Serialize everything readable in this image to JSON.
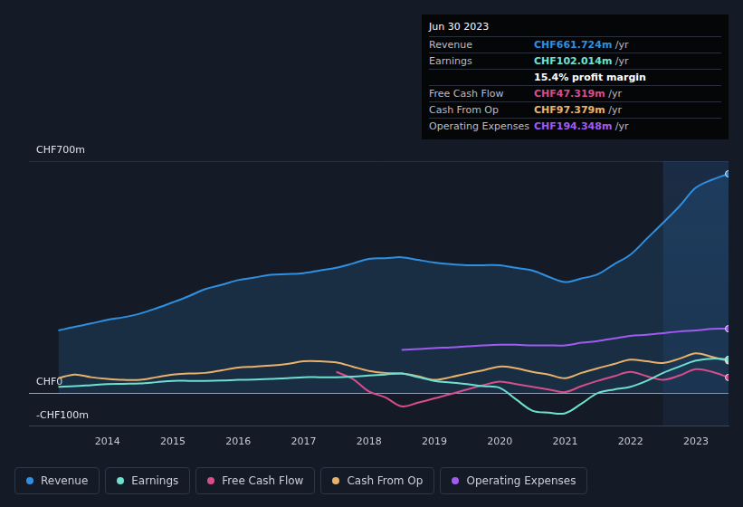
{
  "chart_data": {
    "type": "line",
    "x": [
      2013.25,
      2013.5,
      2013.75,
      2014,
      2014.25,
      2014.5,
      2014.75,
      2015,
      2015.25,
      2015.5,
      2015.75,
      2016,
      2016.25,
      2016.5,
      2016.75,
      2017,
      2017.25,
      2017.5,
      2017.75,
      2018,
      2018.25,
      2018.5,
      2018.75,
      2019,
      2019.25,
      2019.5,
      2019.75,
      2020,
      2020.25,
      2020.5,
      2020.75,
      2021,
      2021.25,
      2021.5,
      2021.75,
      2022,
      2022.25,
      2022.5,
      2022.75,
      2023,
      2023.25,
      2023.5
    ],
    "xlim": [
      2012.8,
      2023.5
    ],
    "xticks": [
      2014,
      2015,
      2016,
      2017,
      2018,
      2019,
      2020,
      2021,
      2022,
      2023
    ],
    "ylim": [
      -100,
      700
    ],
    "yticks": [
      {
        "value": -100,
        "label": "-CHF100m"
      },
      {
        "value": 0,
        "label": "CHF0"
      },
      {
        "value": 700,
        "label": "CHF700m"
      }
    ],
    "grid": true,
    "legend": "bottom left",
    "highlight_xlim": [
      2022.5,
      2023.5
    ],
    "series": [
      {
        "name": "Revenue",
        "color": "#2f8fe0",
        "type": "area",
        "values": [
          189,
          200,
          210,
          221,
          229,
          240,
          256,
          274,
          293,
          314,
          327,
          341,
          349,
          357,
          359,
          362,
          370,
          378,
          391,
          405,
          407,
          410,
          402,
          394,
          389,
          386,
          386,
          386,
          378,
          370,
          351,
          335,
          346,
          359,
          389,
          418,
          466,
          514,
          564,
          620,
          644,
          661.724
        ]
      },
      {
        "name": "Earnings",
        "color": "#6ee0d0",
        "type": "line",
        "values": [
          19,
          21,
          24,
          27,
          28,
          29,
          33,
          37,
          37,
          37,
          38,
          40,
          41,
          43,
          45,
          48,
          48,
          48,
          50,
          53,
          56,
          59,
          48,
          37,
          32,
          27,
          21,
          16,
          -19,
          -53,
          -59,
          -61,
          -32,
          0,
          11,
          19,
          37,
          61,
          80,
          98,
          104,
          102.014
        ]
      },
      {
        "name": "Free Cash Flow",
        "color": "#d64e8b",
        "type": "line",
        "values": [
          null,
          null,
          null,
          null,
          null,
          null,
          null,
          null,
          null,
          null,
          null,
          null,
          null,
          null,
          null,
          null,
          null,
          64,
          43,
          5,
          -13,
          -40,
          -29,
          -16,
          -3,
          11,
          24,
          35,
          27,
          19,
          11,
          3,
          21,
          37,
          51,
          64,
          51,
          40,
          53,
          72,
          64,
          47.319
        ]
      },
      {
        "name": "Cash From Op",
        "color": "#e8b26a",
        "type": "line",
        "values": [
          45,
          56,
          48,
          43,
          40,
          40,
          48,
          56,
          59,
          61,
          69,
          77,
          80,
          83,
          88,
          96,
          96,
          93,
          80,
          67,
          61,
          59,
          51,
          40,
          48,
          59,
          69,
          80,
          75,
          64,
          56,
          45,
          61,
          75,
          88,
          101,
          96,
          91,
          104,
          120,
          109,
          97.379
        ]
      },
      {
        "name": "Operating Expenses",
        "color": "#a05bf0",
        "type": "line",
        "values": [
          null,
          null,
          null,
          null,
          null,
          null,
          null,
          null,
          null,
          null,
          null,
          null,
          null,
          null,
          null,
          null,
          null,
          null,
          null,
          null,
          null,
          130,
          133,
          136,
          138,
          141,
          144,
          146,
          146,
          144,
          144,
          144,
          152,
          157,
          165,
          173,
          176,
          181,
          186,
          189,
          194,
          194.348
        ]
      }
    ],
    "info_box": {
      "title": "Jun 30 2023",
      "rows": [
        {
          "label": "Revenue",
          "value": "CHF661.724m",
          "unit": "/yr",
          "color": "#2f8fe0"
        },
        {
          "label": "Earnings",
          "value": "CHF102.014m",
          "unit": "/yr",
          "color": "#6ee0d0"
        },
        {
          "value": "15.4% profit margin",
          "color": "#ffffff"
        },
        {
          "label": "Free Cash Flow",
          "value": "CHF47.319m",
          "unit": "/yr",
          "color": "#d64e8b"
        },
        {
          "label": "Cash From Op",
          "value": "CHF97.379m",
          "unit": "/yr",
          "color": "#e8b26a"
        },
        {
          "label": "Operating Expenses",
          "value": "CHF194.348m",
          "unit": "/yr",
          "color": "#a05bf0"
        }
      ]
    }
  }
}
